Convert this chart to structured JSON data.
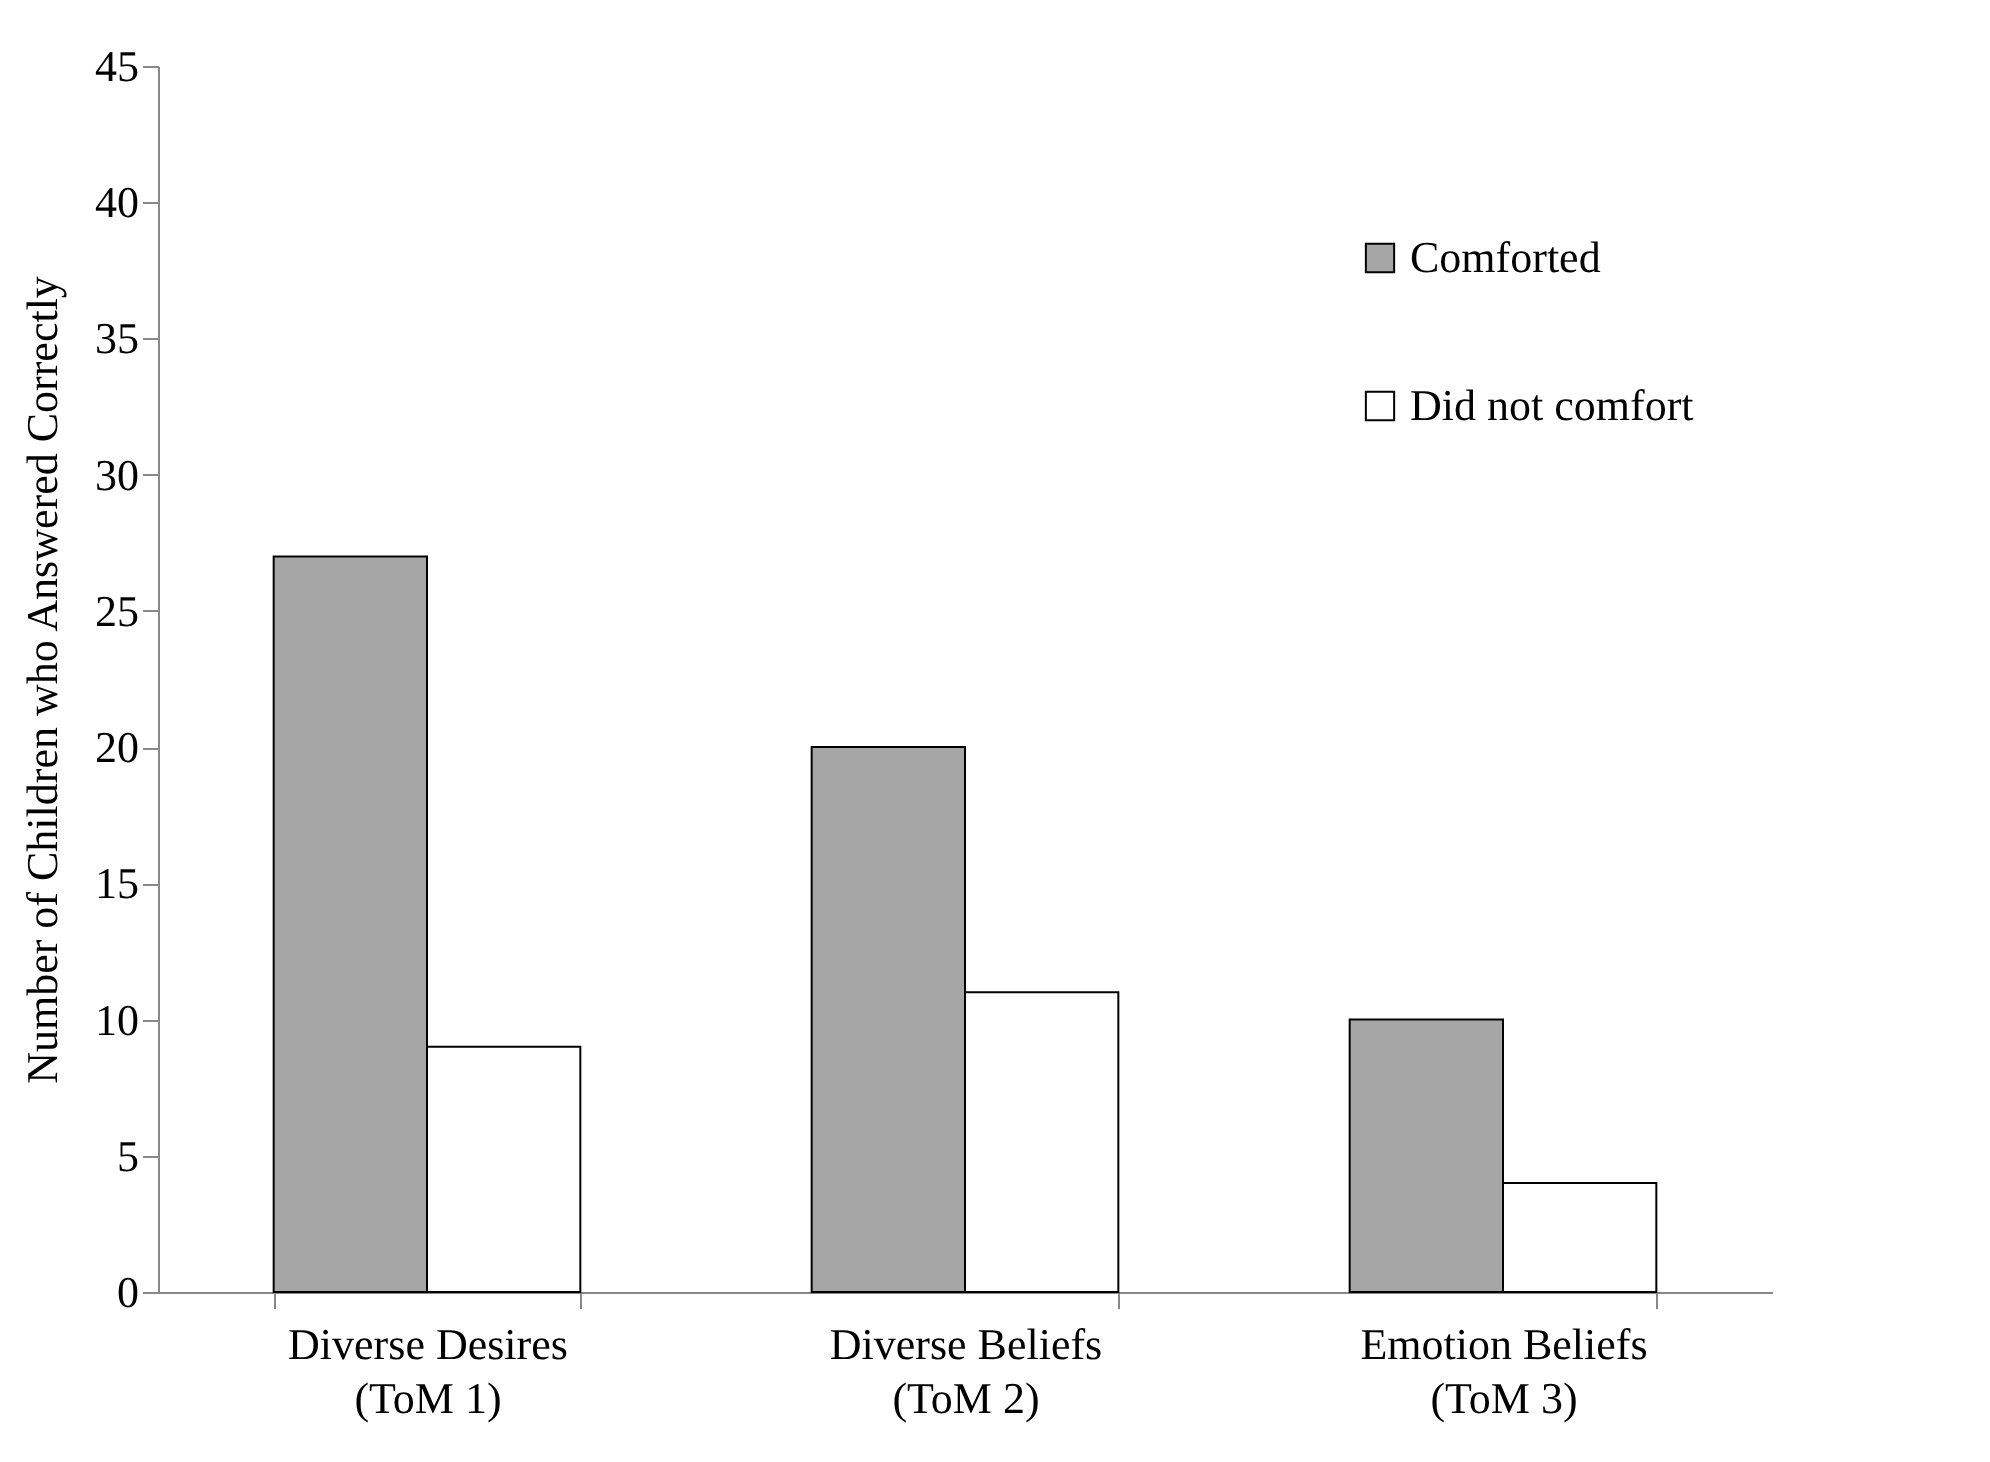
{
  "chart_data": {
    "type": "bar",
    "ylabel": "Number of Children who Answered Correctly",
    "categories": [
      "Diverse Desires\n(ToM 1)",
      "Diverse Beliefs\n(ToM 2)",
      "Emotion Beliefs\n(ToM 3)"
    ],
    "series": [
      {
        "name": "Comforted",
        "color": "#a6a6a6",
        "values": [
          27,
          20,
          10
        ]
      },
      {
        "name": "Did not comfort",
        "color": "#ffffff",
        "values": [
          9,
          11,
          4
        ]
      }
    ],
    "ylim": [
      0,
      45
    ],
    "yticks": [
      0,
      5,
      10,
      15,
      20,
      25,
      30,
      35,
      40,
      45
    ],
    "grid": false,
    "legend": "top right"
  }
}
